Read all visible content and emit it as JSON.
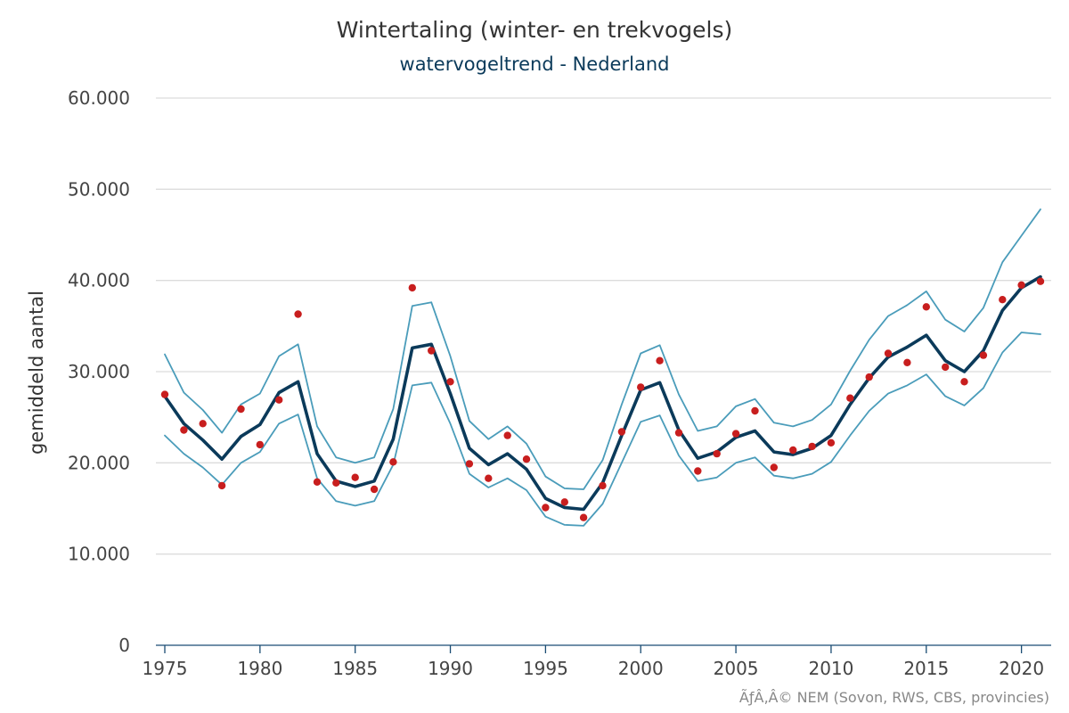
{
  "chart_data": {
    "type": "line",
    "title": "Wintertaling (winter- en trekvogels)",
    "subtitle": "watervogeltrend - Nederland",
    "ylabel": "gemiddeld aantal",
    "xlabel": "",
    "ylim": [
      0,
      60000
    ],
    "xlim": [
      1975,
      2021
    ],
    "y_ticks": [
      0,
      10000,
      20000,
      30000,
      40000,
      50000,
      60000
    ],
    "y_tick_labels": [
      "0",
      "10.000",
      "20.000",
      "30.000",
      "40.000",
      "50.000",
      "60.000"
    ],
    "x_ticks": [
      1975,
      1980,
      1985,
      1990,
      1995,
      2000,
      2005,
      2010,
      2015,
      2020
    ],
    "x_tick_labels": [
      "1975",
      "1980",
      "1985",
      "1990",
      "1995",
      "2000",
      "2005",
      "2010",
      "2015",
      "2020"
    ],
    "grid": true,
    "credit": "ÃƒÂ‚Â© NEM (Sovon, RWS, CBS, provincies)",
    "colors": {
      "trend": "#0b3a5a",
      "band": "#4a9cba",
      "points": "#c81e1e"
    },
    "x": [
      1975,
      1976,
      1977,
      1978,
      1979,
      1980,
      1981,
      1982,
      1983,
      1984,
      1985,
      1986,
      1987,
      1988,
      1989,
      1990,
      1991,
      1992,
      1993,
      1994,
      1995,
      1996,
      1997,
      1998,
      1999,
      2000,
      2001,
      2002,
      2003,
      2004,
      2005,
      2006,
      2007,
      2008,
      2009,
      2010,
      2011,
      2012,
      2013,
      2014,
      2015,
      2016,
      2017,
      2018,
      2019,
      2020,
      2021
    ],
    "series": [
      {
        "role": "trend",
        "values": [
          27300,
          24300,
          22500,
          20400,
          22900,
          24200,
          27700,
          28900,
          21000,
          18000,
          17400,
          18000,
          22600,
          32600,
          33000,
          27600,
          21600,
          19800,
          21000,
          19300,
          16100,
          15100,
          14900,
          17800,
          23000,
          28000,
          28800,
          23600,
          20500,
          21200,
          22800,
          23500,
          21200,
          20900,
          21600,
          23000,
          26400,
          29300,
          31600,
          32700,
          34000,
          31200,
          30000,
          32300,
          36700,
          39200,
          40400
        ]
      },
      {
        "role": "upper",
        "values": [
          31900,
          27700,
          25800,
          23300,
          26400,
          27600,
          31700,
          33000,
          24000,
          20600,
          20000,
          20600,
          25900,
          37200,
          37600,
          31700,
          24600,
          22600,
          24000,
          22100,
          18500,
          17200,
          17100,
          20300,
          26400,
          32000,
          32900,
          27500,
          23500,
          24000,
          26200,
          27000,
          24400,
          24000,
          24700,
          26400,
          30100,
          33500,
          36100,
          37300,
          38800,
          35700,
          34400,
          37000,
          42000,
          44900,
          47800
        ]
      },
      {
        "role": "lower",
        "values": [
          23000,
          21000,
          19500,
          17600,
          20000,
          21200,
          24300,
          25300,
          18300,
          15800,
          15300,
          15800,
          19800,
          28500,
          28800,
          24300,
          18800,
          17300,
          18300,
          17000,
          14100,
          13200,
          13100,
          15500,
          20000,
          24500,
          25200,
          20800,
          18000,
          18400,
          20000,
          20600,
          18600,
          18300,
          18800,
          20100,
          23000,
          25700,
          27600,
          28500,
          29700,
          27300,
          26300,
          28200,
          32100,
          34300,
          34100
        ]
      },
      {
        "role": "observed",
        "values": [
          27500,
          23600,
          24300,
          17500,
          25900,
          22000,
          26900,
          36300,
          17900,
          17800,
          18400,
          17100,
          20100,
          39200,
          32300,
          28900,
          19900,
          18300,
          23000,
          20400,
          15100,
          15700,
          14000,
          17500,
          23400,
          28300,
          31200,
          23300,
          19100,
          21000,
          23200,
          25700,
          19500,
          21400,
          21800,
          22200,
          27100,
          29400,
          32000,
          31000,
          37100,
          30500,
          28900,
          31800,
          37900,
          39500,
          39900
        ]
      }
    ]
  }
}
